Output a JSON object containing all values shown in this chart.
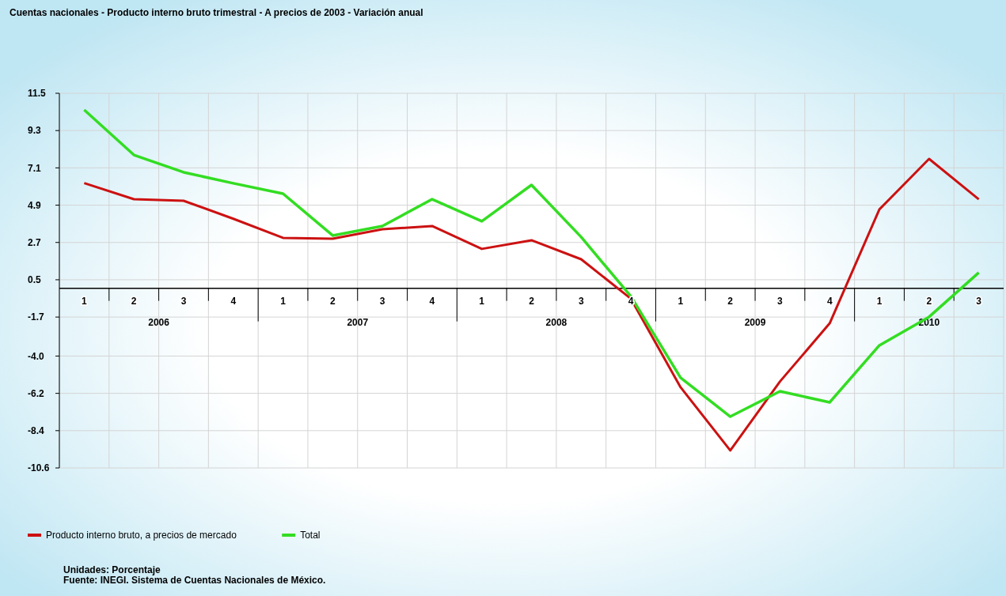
{
  "chart_data": {
    "type": "line",
    "title": "Cuentas nacionales - Producto interno bruto trimestral - A precios de 2003 - Variación anual",
    "categories": [
      "1",
      "2",
      "3",
      "4",
      "1",
      "2",
      "3",
      "4",
      "1",
      "2",
      "3",
      "4",
      "1",
      "2",
      "3",
      "4",
      "1",
      "2",
      "3"
    ],
    "series": [
      {
        "name": "Producto interno bruto, a precios de mercado",
        "color": "#cc1111",
        "values": [
          6.2,
          5.25,
          5.16,
          4.1,
          2.97,
          2.92,
          3.48,
          3.67,
          2.32,
          2.83,
          1.71,
          -0.62,
          -5.84,
          -9.57,
          -5.5,
          -2.07,
          4.65,
          7.63,
          5.25
        ]
      },
      {
        "name": "Total",
        "color": "#33dd22",
        "values": [
          10.52,
          7.86,
          6.84,
          6.19,
          5.58,
          3.11,
          3.67,
          5.25,
          3.95,
          6.09,
          3.02,
          -0.48,
          -5.28,
          -7.57,
          -6.08,
          -6.73,
          -3.37,
          -1.69,
          0.92
        ]
      }
    ],
    "ylim": [
      -10.6,
      11.5
    ],
    "yticks": [
      -10.6,
      -8.4,
      -6.2,
      {
        "value": -4,
        "label": "-4.0"
      },
      -1.7,
      0.5,
      2.7,
      4.9,
      7.1,
      9.3,
      11.5
    ],
    "grid": true,
    "legend": "bottom left",
    "marker": "none",
    "line_style": "solid",
    "annotations": [
      "2006",
      "2007",
      "2008",
      "2009",
      "2010",
      "Unidades: Porcentaje",
      "Fuente: INEGI. Sistema de Cuentas Nacionales de México."
    ]
  }
}
